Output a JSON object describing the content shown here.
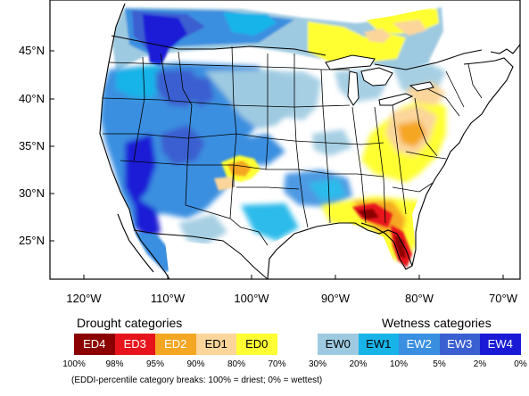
{
  "map": {
    "latitude_labels": [
      "45°N",
      "40°N",
      "35°N",
      "30°N",
      "25°N"
    ],
    "longitude_labels": [
      "120°W",
      "110°W",
      "100°W",
      "90°W",
      "80°W",
      "70°W"
    ]
  },
  "legend": {
    "drought_heading": "Drought categories",
    "wetness_heading": "Wetness categories",
    "categories": [
      {
        "label": "ED4",
        "color": "#8b0000",
        "text_color": "#ffffff"
      },
      {
        "label": "ED3",
        "color": "#e8141c",
        "text_color": "#ffffff"
      },
      {
        "label": "ED2",
        "color": "#f5a623",
        "text_color": "#ffffff"
      },
      {
        "label": "ED1",
        "color": "#fbd59a",
        "text_color": "#000000"
      },
      {
        "label": "ED0",
        "color": "#ffff33",
        "text_color": "#000000"
      },
      {
        "label": "",
        "color": "#ffffff",
        "text_color": "#000000"
      },
      {
        "label": "EW0",
        "color": "#9ecae1",
        "text_color": "#000000"
      },
      {
        "label": "EW1",
        "color": "#18b4e8",
        "text_color": "#000000"
      },
      {
        "label": "EW2",
        "color": "#3a8fe0",
        "text_color": "#ffffff"
      },
      {
        "label": "EW3",
        "color": "#3a5fd0",
        "text_color": "#ffffff"
      },
      {
        "label": "EW4",
        "color": "#1a1ad6",
        "text_color": "#ffffff"
      }
    ],
    "ticks": [
      "100%",
      "98%",
      "95%",
      "90%",
      "80%",
      "70%",
      "30%",
      "20%",
      "10%",
      "5%",
      "2%",
      "0%"
    ]
  },
  "note": "(EDDI-percentile category breaks: 100% = driest; 0% = wettest)",
  "colors": {
    "ED4": "#8b0000",
    "ED3": "#e8141c",
    "ED2": "#f5a623",
    "ED1": "#fbd59a",
    "ED0": "#ffff33",
    "EW0": "#9ecae1",
    "EW1": "#18b4e8",
    "EW2": "#3a8fe0",
    "EW3": "#3a5fd0",
    "EW4": "#1a1ad6"
  }
}
